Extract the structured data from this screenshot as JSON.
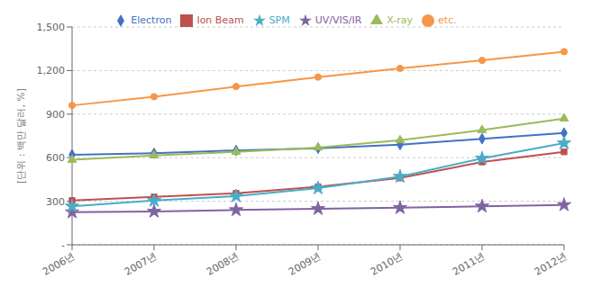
{
  "chart_data": {
    "type": "line",
    "categories": [
      "2006년",
      "2007년",
      "2008년",
      "2009년",
      "2010년",
      "2011년",
      "2012년"
    ],
    "series": [
      {
        "name": "Electron",
        "color": "#4472C4",
        "marker": "diamond",
        "values": [
          620,
          630,
          650,
          665,
          690,
          730,
          770
        ]
      },
      {
        "name": "Ion Beam",
        "color": "#C0504D",
        "marker": "square",
        "values": [
          305,
          330,
          355,
          400,
          460,
          570,
          640
        ]
      },
      {
        "name": "X-ray",
        "color": "#9BBB59",
        "marker": "triangle",
        "values": [
          585,
          615,
          640,
          670,
          720,
          790,
          870
        ]
      },
      {
        "name": "UV/VIS/IR",
        "color": "#8064A2",
        "marker": "star",
        "values": [
          225,
          230,
          240,
          248,
          255,
          265,
          275
        ]
      },
      {
        "name": "SPM",
        "color": "#4BACC6",
        "marker": "star",
        "values": [
          265,
          305,
          335,
          390,
          470,
          595,
          700
        ]
      },
      {
        "name": "etc.",
        "color": "#F79646",
        "marker": "circle",
        "values": [
          960,
          1020,
          1090,
          1155,
          1215,
          1270,
          1330
        ]
      }
    ],
    "ylabel": "[단위 : 백만 달러, %]",
    "ylim": [
      0,
      1500
    ],
    "yticks": [
      {
        "value": 0,
        "label": "-"
      },
      300,
      600,
      900,
      {
        "value": 1200,
        "label": "1,200"
      },
      {
        "value": 1500,
        "label": "1,500"
      }
    ],
    "grid": true,
    "legend": "top"
  }
}
